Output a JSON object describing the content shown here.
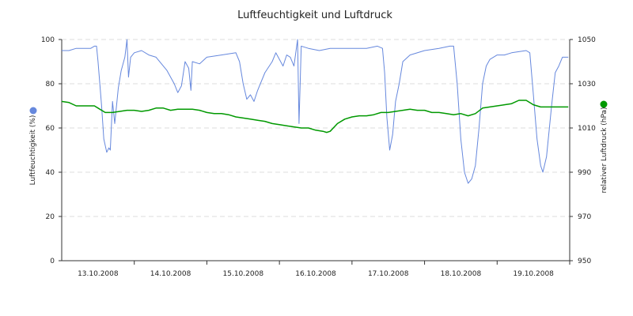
{
  "chart_data": {
    "type": "line",
    "title": "Luftfeuchtigkeit und Luftdruck",
    "x": {
      "categories": [
        "13.10.2008",
        "14.10.2008",
        "15.10.2008",
        "16.10.2008",
        "17.10.2008",
        "18.10.2008",
        "19.10.2008"
      ],
      "range_days": [
        0,
        7
      ]
    },
    "y_left": {
      "label": "Luftfeuchtigkeit (%)",
      "range": [
        0,
        100
      ],
      "ticks": [
        0,
        20,
        40,
        60,
        80,
        100
      ],
      "color": "#6688dd"
    },
    "y_right": {
      "label": "relativer Luftdruck (hPa)",
      "range": [
        950,
        1050
      ],
      "ticks": [
        950,
        970,
        990,
        1010,
        1030,
        1050
      ],
      "color": "#009900"
    },
    "grid": "horizontal dashed",
    "series": [
      {
        "axis": "left",
        "color": "#6688dd",
        "points": [
          [
            0.0,
            95
          ],
          [
            0.1,
            95
          ],
          [
            0.2,
            96
          ],
          [
            0.4,
            96
          ],
          [
            0.45,
            97
          ],
          [
            0.48,
            97
          ],
          [
            0.5,
            90
          ],
          [
            0.55,
            70
          ],
          [
            0.58,
            55
          ],
          [
            0.62,
            49
          ],
          [
            0.65,
            51
          ],
          [
            0.67,
            50
          ],
          [
            0.7,
            72
          ],
          [
            0.73,
            62
          ],
          [
            0.78,
            78
          ],
          [
            0.82,
            86
          ],
          [
            0.87,
            92
          ],
          [
            0.9,
            100
          ],
          [
            0.92,
            83
          ],
          [
            0.95,
            92
          ],
          [
            1.0,
            94
          ],
          [
            1.1,
            95
          ],
          [
            1.2,
            93
          ],
          [
            1.3,
            92
          ],
          [
            1.45,
            86
          ],
          [
            1.5,
            83
          ],
          [
            1.55,
            80
          ],
          [
            1.6,
            76
          ],
          [
            1.65,
            79
          ],
          [
            1.7,
            90
          ],
          [
            1.75,
            87
          ],
          [
            1.78,
            77
          ],
          [
            1.8,
            90
          ],
          [
            1.9,
            89
          ],
          [
            2.0,
            92
          ],
          [
            2.2,
            93
          ],
          [
            2.4,
            94
          ],
          [
            2.45,
            90
          ],
          [
            2.5,
            80
          ],
          [
            2.55,
            73
          ],
          [
            2.6,
            75
          ],
          [
            2.65,
            72
          ],
          [
            2.7,
            77
          ],
          [
            2.8,
            85
          ],
          [
            2.9,
            90
          ],
          [
            2.95,
            94
          ],
          [
            3.05,
            88
          ],
          [
            3.1,
            93
          ],
          [
            3.15,
            92
          ],
          [
            3.2,
            88
          ],
          [
            3.25,
            100
          ],
          [
            3.27,
            62
          ],
          [
            3.3,
            97
          ],
          [
            3.4,
            96
          ],
          [
            3.55,
            95
          ],
          [
            3.7,
            96
          ],
          [
            4.0,
            96
          ],
          [
            4.2,
            96
          ],
          [
            4.35,
            97
          ],
          [
            4.42,
            96
          ],
          [
            4.45,
            85
          ],
          [
            4.48,
            65
          ],
          [
            4.52,
            50
          ],
          [
            4.56,
            57
          ],
          [
            4.6,
            72
          ],
          [
            4.65,
            80
          ],
          [
            4.7,
            90
          ],
          [
            4.8,
            93
          ],
          [
            5.0,
            95
          ],
          [
            5.2,
            96
          ],
          [
            5.35,
            97
          ],
          [
            5.4,
            97
          ],
          [
            5.45,
            80
          ],
          [
            5.5,
            55
          ],
          [
            5.55,
            40
          ],
          [
            5.6,
            35
          ],
          [
            5.65,
            37
          ],
          [
            5.7,
            43
          ],
          [
            5.75,
            60
          ],
          [
            5.8,
            80
          ],
          [
            5.85,
            88
          ],
          [
            5.9,
            91
          ],
          [
            6.0,
            93
          ],
          [
            6.1,
            93
          ],
          [
            6.2,
            94
          ],
          [
            6.4,
            95
          ],
          [
            6.45,
            94
          ],
          [
            6.5,
            75
          ],
          [
            6.55,
            55
          ],
          [
            6.6,
            43
          ],
          [
            6.63,
            40
          ],
          [
            6.68,
            47
          ],
          [
            6.75,
            70
          ],
          [
            6.8,
            85
          ],
          [
            6.85,
            88
          ],
          [
            6.9,
            92
          ],
          [
            6.95,
            92
          ],
          [
            6.98,
            92
          ]
        ]
      },
      {
        "axis": "right",
        "color": "#009900",
        "points": [
          [
            0.0,
            1022
          ],
          [
            0.1,
            1021.5
          ],
          [
            0.2,
            1020
          ],
          [
            0.3,
            1020
          ],
          [
            0.45,
            1020
          ],
          [
            0.5,
            1019
          ],
          [
            0.6,
            1017
          ],
          [
            0.7,
            1017
          ],
          [
            0.8,
            1017.5
          ],
          [
            0.9,
            1018
          ],
          [
            1.0,
            1018
          ],
          [
            1.1,
            1017.5
          ],
          [
            1.2,
            1018
          ],
          [
            1.3,
            1019
          ],
          [
            1.4,
            1019
          ],
          [
            1.5,
            1018
          ],
          [
            1.6,
            1018.5
          ],
          [
            1.7,
            1018.5
          ],
          [
            1.8,
            1018.5
          ],
          [
            1.9,
            1018
          ],
          [
            2.0,
            1017
          ],
          [
            2.1,
            1016.5
          ],
          [
            2.2,
            1016.5
          ],
          [
            2.3,
            1016
          ],
          [
            2.4,
            1015
          ],
          [
            2.5,
            1014.5
          ],
          [
            2.6,
            1014
          ],
          [
            2.7,
            1013.5
          ],
          [
            2.8,
            1013
          ],
          [
            2.9,
            1012
          ],
          [
            3.0,
            1011.5
          ],
          [
            3.1,
            1011
          ],
          [
            3.2,
            1010.5
          ],
          [
            3.3,
            1010
          ],
          [
            3.4,
            1010
          ],
          [
            3.5,
            1009
          ],
          [
            3.6,
            1008.5
          ],
          [
            3.65,
            1008
          ],
          [
            3.7,
            1008.5
          ],
          [
            3.8,
            1012
          ],
          [
            3.9,
            1014
          ],
          [
            4.0,
            1015
          ],
          [
            4.1,
            1015.5
          ],
          [
            4.2,
            1015.5
          ],
          [
            4.3,
            1016
          ],
          [
            4.4,
            1017
          ],
          [
            4.5,
            1017
          ],
          [
            4.6,
            1017.5
          ],
          [
            4.7,
            1018
          ],
          [
            4.8,
            1018.5
          ],
          [
            4.9,
            1018
          ],
          [
            5.0,
            1018
          ],
          [
            5.1,
            1017
          ],
          [
            5.2,
            1017
          ],
          [
            5.3,
            1016.5
          ],
          [
            5.4,
            1016
          ],
          [
            5.5,
            1016.5
          ],
          [
            5.6,
            1015.5
          ],
          [
            5.7,
            1016.5
          ],
          [
            5.8,
            1019
          ],
          [
            5.9,
            1019.5
          ],
          [
            6.0,
            1020
          ],
          [
            6.1,
            1020.5
          ],
          [
            6.2,
            1021
          ],
          [
            6.3,
            1022.5
          ],
          [
            6.4,
            1022.5
          ],
          [
            6.5,
            1020.5
          ],
          [
            6.6,
            1019.5
          ],
          [
            6.8,
            1019.5
          ],
          [
            6.98,
            1019.5
          ]
        ]
      }
    ]
  }
}
